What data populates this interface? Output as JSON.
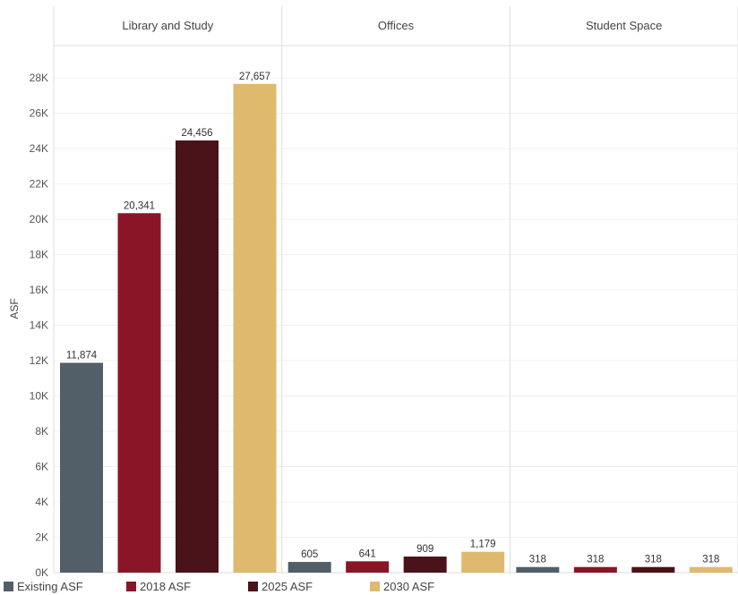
{
  "chart_data": {
    "type": "bar",
    "panels": [
      "Library and Study",
      "Offices",
      "Student Space"
    ],
    "ylabel": "ASF",
    "ylim": [
      0,
      29000
    ],
    "yticks": [
      0,
      2000,
      4000,
      6000,
      8000,
      10000,
      12000,
      14000,
      16000,
      18000,
      20000,
      22000,
      24000,
      26000,
      28000
    ],
    "ytick_labels": [
      "0K",
      "2K",
      "4K",
      "6K",
      "8K",
      "10K",
      "12K",
      "14K",
      "16K",
      "18K",
      "20K",
      "22K",
      "24K",
      "26K",
      "28K"
    ],
    "grid": true,
    "legend_position": "bottom-left",
    "series": [
      {
        "name": "Existing ASF",
        "color": "#525E68",
        "values": [
          11874,
          605,
          318
        ],
        "labels": [
          "11,874",
          "605",
          "318"
        ]
      },
      {
        "name": "2018 ASF",
        "color": "#8A1527",
        "values": [
          20341,
          641,
          318
        ],
        "labels": [
          "20,341",
          "641",
          "318"
        ]
      },
      {
        "name": "2025 ASF",
        "color": "#4A1219",
        "values": [
          24456,
          909,
          318
        ],
        "labels": [
          "24,456",
          "909",
          "318"
        ]
      },
      {
        "name": "2030 ASF",
        "color": "#DFBA6E",
        "values": [
          27657,
          1179,
          318
        ],
        "labels": [
          "27,657",
          "1,179",
          "318"
        ]
      }
    ]
  }
}
